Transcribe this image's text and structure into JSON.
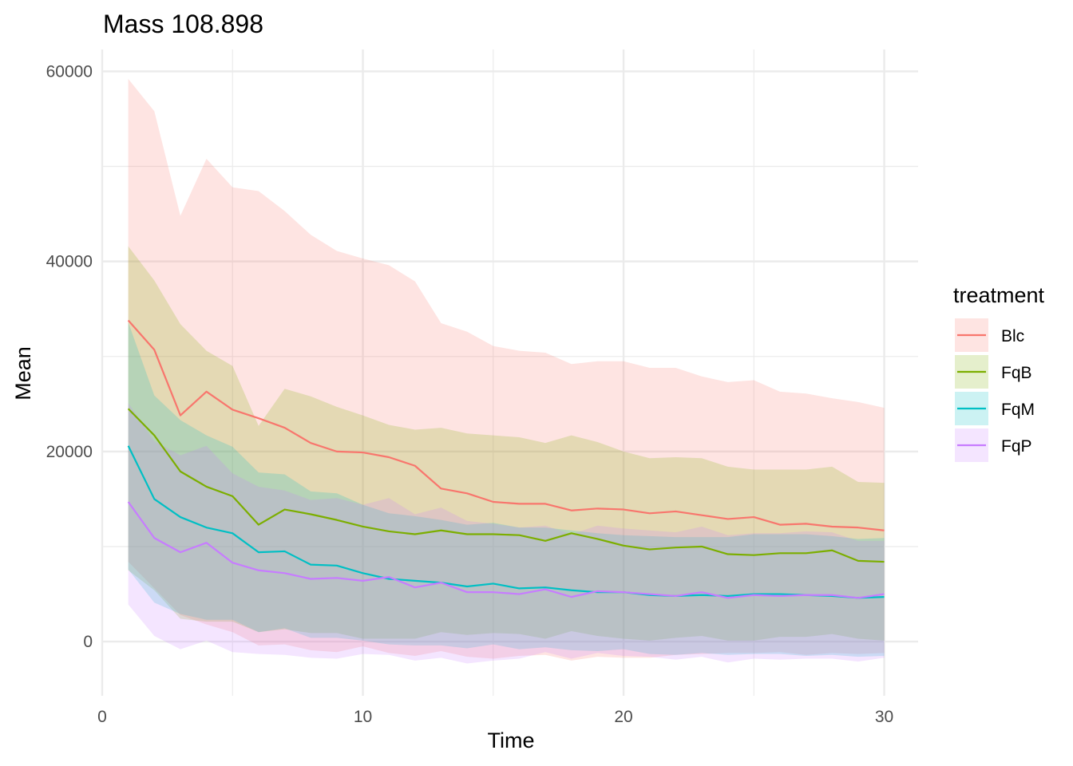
{
  "chart_data": {
    "type": "area",
    "title": "Mass 108.898",
    "xlabel": "Time",
    "ylabel": "Mean",
    "xlim": [
      0,
      31.3
    ],
    "ylim": [
      -5700,
      62300
    ],
    "x_ticks": [
      0,
      10,
      20,
      30
    ],
    "y_ticks": [
      0,
      20000,
      40000,
      60000
    ],
    "x_tick_labels": [
      "0",
      "10",
      "20",
      "30"
    ],
    "y_tick_labels": [
      "0",
      "20000",
      "40000",
      "60000"
    ],
    "grid": true,
    "legend": {
      "title": "treatment",
      "position": "right"
    },
    "ribbon_opacity": 0.2,
    "x": [
      1,
      2,
      3,
      4,
      5,
      6,
      7,
      8,
      9,
      10,
      11,
      12,
      13,
      14,
      15,
      16,
      17,
      18,
      19,
      20,
      21,
      22,
      23,
      24,
      25,
      26,
      27,
      28,
      29,
      30
    ],
    "series": [
      {
        "name": "Blc",
        "color": "#F8766D",
        "mean": [
          33800,
          30700,
          23800,
          26300,
          24400,
          23500,
          22500,
          20900,
          20000,
          19900,
          19400,
          18500,
          16100,
          15600,
          14700,
          14500,
          14500,
          13800,
          14000,
          13900,
          13500,
          13700,
          13300,
          12900,
          13100,
          12300,
          12400,
          12100,
          12000,
          11700
        ],
        "upper": [
          59200,
          55800,
          44800,
          50800,
          47800,
          47400,
          45300,
          42800,
          41100,
          40300,
          39600,
          37900,
          33500,
          32600,
          31100,
          30600,
          30400,
          29200,
          29500,
          29500,
          28800,
          28800,
          27900,
          27300,
          27500,
          26300,
          26100,
          25600,
          25200,
          24600
        ],
        "lower": [
          8400,
          5600,
          2800,
          1800,
          1000,
          -400,
          -300,
          -900,
          -1100,
          -500,
          -1200,
          -1500,
          -1000,
          -1600,
          -1800,
          -1500,
          -1400,
          -2000,
          -1600,
          -1700,
          -1700,
          -1400,
          -1300,
          -1200,
          -1200,
          -1100,
          -1400,
          -1200,
          -1300,
          -1200
        ]
      },
      {
        "name": "FqB",
        "color": "#7CAE00",
        "mean": [
          24500,
          21700,
          17900,
          16300,
          15300,
          12300,
          13900,
          13400,
          12800,
          12100,
          11600,
          11300,
          11700,
          11300,
          11300,
          11200,
          10600,
          11400,
          10800,
          10100,
          9700,
          9900,
          10000,
          9200,
          9100,
          9300,
          9300,
          9600,
          8500,
          8400
        ],
        "upper": [
          41600,
          38000,
          33400,
          30600,
          29000,
          22700,
          26600,
          25800,
          24700,
          23800,
          22800,
          22300,
          22500,
          21900,
          21700,
          21500,
          20900,
          21700,
          21000,
          20000,
          19300,
          19400,
          19300,
          18400,
          18100,
          18100,
          18100,
          18400,
          16800,
          16700
        ],
        "lower": [
          7500,
          5400,
          2400,
          2100,
          2100,
          1000,
          1300,
          900,
          900,
          300,
          300,
          300,
          1000,
          700,
          900,
          800,
          300,
          1100,
          600,
          300,
          100,
          400,
          600,
          100,
          100,
          500,
          500,
          800,
          300,
          100
        ]
      },
      {
        "name": "FqM",
        "color": "#00BFC4",
        "mean": [
          20600,
          15000,
          13100,
          12000,
          11400,
          9400,
          9500,
          8100,
          8000,
          7200,
          6600,
          6400,
          6200,
          5800,
          6100,
          5600,
          5700,
          5400,
          5200,
          5200,
          4900,
          4800,
          4900,
          4800,
          5000,
          5000,
          4900,
          4800,
          4600,
          4700
        ],
        "upper": [
          33600,
          25900,
          23300,
          21700,
          20500,
          17800,
          17600,
          15800,
          15600,
          14400,
          13500,
          13200,
          12800,
          12300,
          12500,
          12000,
          12000,
          11700,
          11400,
          11200,
          11100,
          11000,
          11000,
          11000,
          11300,
          11300,
          11300,
          11100,
          10800,
          10900
        ],
        "lower": [
          7600,
          4100,
          2900,
          2300,
          2300,
          1000,
          1400,
          400,
          400,
          100,
          -300,
          -400,
          -400,
          -700,
          -300,
          -800,
          -600,
          -900,
          -1000,
          -800,
          -1300,
          -1400,
          -1200,
          -1400,
          -1300,
          -1300,
          -1500,
          -1400,
          -1600,
          -1500
        ]
      },
      {
        "name": "FqP",
        "color": "#C77CFF",
        "mean": [
          14700,
          10900,
          9400,
          10400,
          8300,
          7500,
          7200,
          6600,
          6700,
          6400,
          6800,
          5700,
          6200,
          5200,
          5200,
          5000,
          5500,
          4700,
          5300,
          5200,
          5000,
          4800,
          5200,
          4600,
          4900,
          4800,
          4900,
          4900,
          4600,
          5000
        ],
        "upper": [
          25100,
          21100,
          19600,
          20600,
          17700,
          16300,
          15900,
          14900,
          15100,
          14400,
          15100,
          13400,
          14100,
          12700,
          12400,
          12000,
          12200,
          11300,
          12200,
          11900,
          11700,
          11500,
          12100,
          11200,
          11400,
          11400,
          11600,
          11500,
          10600,
          10600
        ],
        "lower": [
          3900,
          600,
          -800,
          100,
          -1100,
          -1300,
          -1400,
          -1700,
          -1800,
          -1300,
          -1400,
          -2000,
          -1700,
          -2300,
          -2000,
          -1800,
          -1100,
          -1800,
          -1200,
          -1500,
          -1600,
          -1900,
          -1600,
          -2200,
          -1800,
          -1900,
          -1800,
          -1800,
          -2100,
          -1700
        ]
      }
    ]
  }
}
